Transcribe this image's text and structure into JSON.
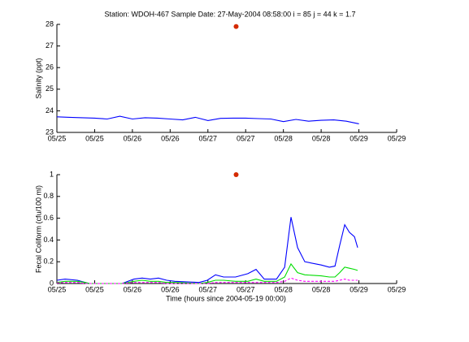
{
  "chart_data": [
    {
      "type": "line",
      "title": "Station: WDOH-467  Sample Date: 27-May-2004 08:58:00   i = 85 j = 44 k = 1.7",
      "y_label": "Salinity (ppt)",
      "x": [
        144,
        148,
        152,
        156,
        160,
        164,
        168,
        172,
        176,
        180,
        184,
        188,
        192,
        196,
        200,
        204,
        208,
        212,
        216,
        220,
        224,
        228,
        232,
        236,
        240
      ],
      "series": [
        {
          "color": "#0000ff",
          "values": [
            23.72,
            23.7,
            23.68,
            23.66,
            23.62,
            23.75,
            23.62,
            23.68,
            23.66,
            23.62,
            23.58,
            23.7,
            23.55,
            23.65,
            23.66,
            23.66,
            23.64,
            23.62,
            23.5,
            23.6,
            23.52,
            23.56,
            23.58,
            23.52,
            23.4
          ]
        }
      ],
      "marker": {
        "x": 200.97,
        "y": 27.9,
        "color": "#d42a00"
      },
      "xlim": [
        144,
        252
      ],
      "xticks": [
        {
          "value": 144,
          "label": "05/25"
        },
        {
          "value": 156,
          "label": "05/25"
        },
        {
          "value": 168,
          "label": "05/26"
        },
        {
          "value": 180,
          "label": "05/26"
        },
        {
          "value": 192,
          "label": "05/27"
        },
        {
          "value": 204,
          "label": "05/27"
        },
        {
          "value": 216,
          "label": "05/28"
        },
        {
          "value": 228,
          "label": "05/28"
        },
        {
          "value": 240,
          "label": "05/29"
        },
        {
          "value": 252,
          "label": "05/29"
        }
      ],
      "ylim": [
        23,
        28
      ],
      "yticks": [
        23,
        24,
        25,
        26,
        27,
        28
      ]
    },
    {
      "type": "line",
      "y_label": "Fecal Coliform (cfu/100 ml)",
      "x_label": "Time (hours since 2004-05-19 00:00)",
      "x": [
        144,
        146.6,
        150.5,
        153.0,
        154.3,
        164.7,
        168.5,
        171.1,
        173.7,
        176.3,
        178.9,
        181.5,
        189.2,
        191.8,
        194.4,
        197.0,
        200.8,
        204.7,
        207.3,
        209.9,
        213.8,
        216.4,
        218.4,
        220.5,
        222.8,
        228.0,
        230.6,
        232.4,
        233.9,
        235.5,
        237.0,
        238.6,
        239.6
      ],
      "series": [
        {
          "color": "#0000ff",
          "style": "solid",
          "values": [
            0.03,
            0.04,
            0.03,
            0.01,
            0.0,
            0.0,
            0.04,
            0.05,
            0.04,
            0.05,
            0.03,
            0.02,
            0.01,
            0.03,
            0.08,
            0.06,
            0.06,
            0.09,
            0.13,
            0.04,
            0.04,
            0.15,
            0.61,
            0.33,
            0.2,
            0.17,
            0.15,
            0.16,
            0.35,
            0.54,
            0.47,
            0.43,
            0.33
          ]
        },
        {
          "color": "#00dd00",
          "style": "solid",
          "values": [
            0.01,
            0.02,
            0.02,
            0.01,
            0.0,
            0.0,
            0.02,
            0.03,
            0.02,
            0.02,
            0.01,
            0.01,
            0.0,
            0.01,
            0.03,
            0.03,
            0.02,
            0.02,
            0.04,
            0.02,
            0.02,
            0.06,
            0.18,
            0.1,
            0.08,
            0.07,
            0.06,
            0.06,
            0.1,
            0.15,
            0.14,
            0.13,
            0.12
          ]
        },
        {
          "color": "#ff00ff",
          "style": "dashed",
          "values": [
            0.005,
            0.01,
            0.01,
            0.0,
            0.0,
            0.0,
            0.01,
            0.01,
            0.01,
            0.01,
            0.0,
            0.0,
            0.0,
            0.0,
            0.01,
            0.01,
            0.01,
            0.01,
            0.01,
            0.01,
            0.01,
            0.02,
            0.05,
            0.03,
            0.02,
            0.02,
            0.02,
            0.02,
            0.03,
            0.04,
            0.03,
            0.03,
            0.03
          ]
        }
      ],
      "marker": {
        "x": 200.97,
        "y": 1,
        "color": "#d42a00"
      },
      "xlim": [
        144,
        252
      ],
      "xticks": [
        {
          "value": 144,
          "label": "05/25"
        },
        {
          "value": 156,
          "label": "05/25"
        },
        {
          "value": 168,
          "label": "05/26"
        },
        {
          "value": 180,
          "label": "05/26"
        },
        {
          "value": 192,
          "label": "05/27"
        },
        {
          "value": 204,
          "label": "05/27"
        },
        {
          "value": 216,
          "label": "05/28"
        },
        {
          "value": 228,
          "label": "05/28"
        },
        {
          "value": 240,
          "label": "05/29"
        },
        {
          "value": 252,
          "label": "05/29"
        }
      ],
      "ylim": [
        0,
        1
      ],
      "yticks": [
        0,
        0.2,
        0.4,
        0.6,
        0.8,
        1
      ]
    }
  ]
}
